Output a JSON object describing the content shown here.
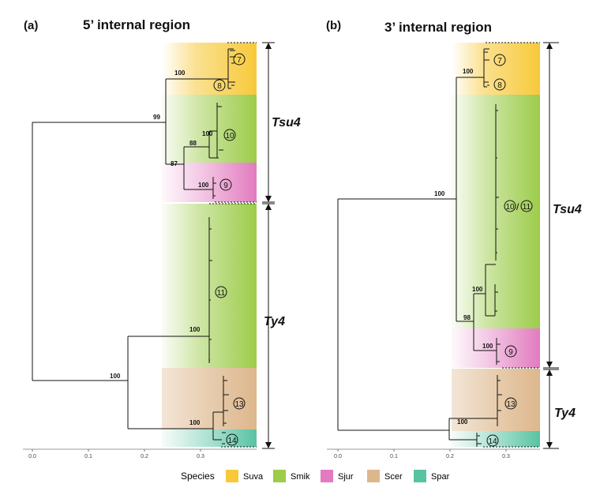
{
  "panels": [
    {
      "label": "(a)",
      "title": "5’ internal region",
      "bootstrap": [
        "100",
        "99",
        "100",
        "88",
        "87",
        "100",
        "100",
        "100",
        "100"
      ],
      "clades": [
        "7",
        "8",
        "10",
        "9",
        "11",
        "13",
        "14"
      ],
      "groups": [
        "Tsu4",
        "Ty4"
      ],
      "axis_ticks": [
        "0.0",
        "0.1",
        "0.2",
        "0.3"
      ]
    },
    {
      "label": "(b)",
      "title": "3’ internal region",
      "bootstrap": [
        "100",
        "100",
        "100",
        "98",
        "100",
        "100"
      ],
      "clades": [
        "7",
        "8",
        "10",
        "11",
        "9",
        "13",
        "14"
      ],
      "groups": [
        "Tsu4",
        "Ty4"
      ],
      "axis_ticks": [
        "0.0",
        "0.1",
        "0.2",
        "0.3"
      ]
    }
  ],
  "legend": {
    "title": "Species",
    "items": [
      {
        "name": "Suva",
        "color": "#f7c93a"
      },
      {
        "name": "Smik",
        "color": "#9ccc4a"
      },
      {
        "name": "Sjur",
        "color": "#e27bbf"
      },
      {
        "name": "Scer",
        "color": "#ddb78c"
      },
      {
        "name": "Spar",
        "color": "#57c3a2"
      }
    ]
  }
}
